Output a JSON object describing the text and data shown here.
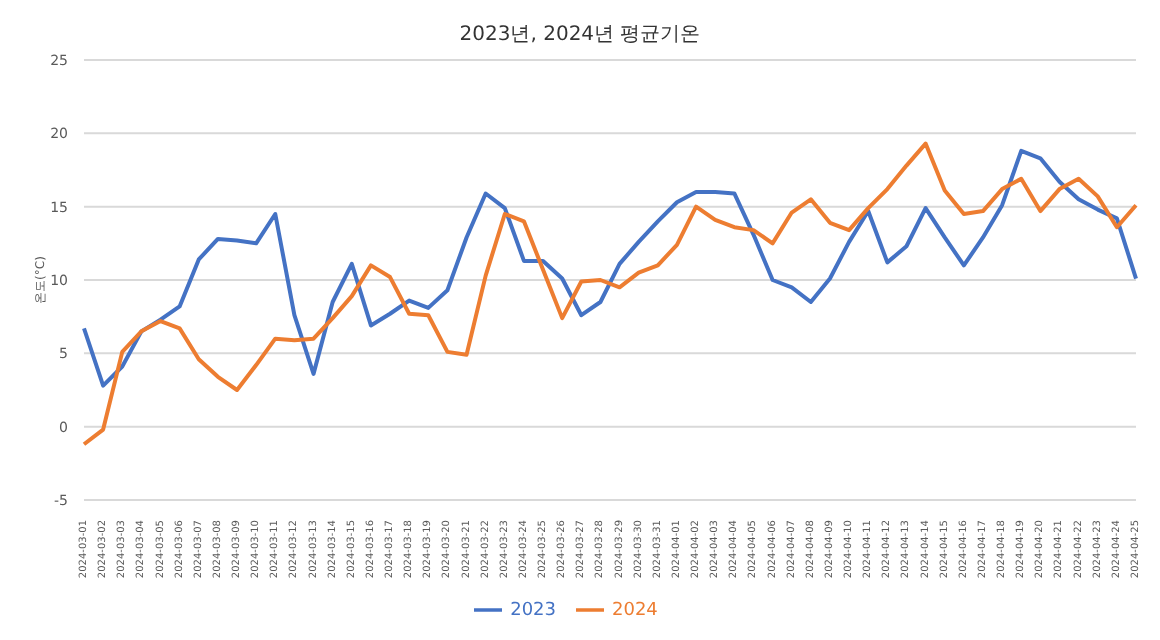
{
  "chart_data": {
    "type": "line",
    "title": "2023년, 2024년 평균기온",
    "ylabel": "온도(°C)",
    "categories": [
      "2024-03-01",
      "2024-03-02",
      "2024-03-03",
      "2024-03-04",
      "2024-03-05",
      "2024-03-06",
      "2024-03-07",
      "2024-03-08",
      "2024-03-09",
      "2024-03-10",
      "2024-03-11",
      "2024-03-12",
      "2024-03-13",
      "2024-03-14",
      "2024-03-15",
      "2024-03-16",
      "2024-03-17",
      "2024-03-18",
      "2024-03-19",
      "2024-03-20",
      "2024-03-21",
      "2024-03-22",
      "2024-03-23",
      "2024-03-24",
      "2024-03-25",
      "2024-03-26",
      "2024-03-27",
      "2024-03-28",
      "2024-03-29",
      "2024-03-30",
      "2024-03-31",
      "2024-04-01",
      "2024-04-02",
      "2024-04-03",
      "2024-04-04",
      "2024-04-05",
      "2024-04-06",
      "2024-04-07",
      "2024-04-08",
      "2024-04-09",
      "2024-04-10",
      "2024-04-11",
      "2024-04-12",
      "2024-04-13",
      "2024-04-14",
      "2024-04-15",
      "2024-04-16",
      "2024-04-17",
      "2024-04-18",
      "2024-04-19",
      "2024-04-20",
      "2024-04-21",
      "2024-04-22",
      "2024-04-23",
      "2024-04-24",
      "2024-04-25"
    ],
    "series": [
      {
        "name": "2023",
        "color": "#4472c4",
        "values": [
          6.7,
          2.8,
          4.1,
          6.5,
          7.3,
          8.2,
          11.4,
          12.8,
          12.7,
          12.5,
          14.5,
          7.6,
          3.6,
          8.5,
          11.1,
          6.9,
          7.7,
          8.6,
          8.1,
          9.3,
          12.9,
          15.9,
          14.9,
          11.3,
          11.3,
          10.1,
          7.6,
          8.5,
          11.1,
          12.6,
          14.0,
          15.3,
          16.0,
          16.0,
          15.9,
          13.1,
          10.0,
          9.5,
          8.5,
          10.1,
          12.6,
          14.7,
          11.2,
          12.3,
          14.9,
          12.9,
          11.0,
          12.9,
          15.1,
          18.8,
          18.3,
          16.7,
          15.5,
          14.8,
          14.2,
          10.1
        ]
      },
      {
        "name": "2024",
        "color": "#ed7d31",
        "values": [
          -1.2,
          -0.2,
          5.1,
          6.5,
          7.2,
          6.7,
          4.6,
          3.4,
          2.5,
          4.2,
          6.0,
          5.9,
          6.0,
          7.4,
          8.9,
          11.0,
          10.2,
          7.7,
          7.6,
          5.1,
          4.9,
          10.3,
          14.5,
          14.0,
          10.7,
          7.4,
          9.9,
          10.0,
          9.5,
          10.5,
          11.0,
          12.4,
          15.0,
          14.1,
          13.6,
          13.4,
          12.5,
          14.6,
          15.5,
          13.9,
          13.4,
          14.9,
          16.2,
          17.8,
          19.3,
          16.1,
          14.5,
          14.7,
          16.2,
          16.9,
          14.7,
          16.2,
          16.9,
          15.7,
          13.6,
          15.1
        ]
      }
    ],
    "ylim": [
      -5,
      25
    ],
    "yticks": [
      -5,
      0,
      5,
      10,
      15,
      20,
      25
    ],
    "grid": "y",
    "legend": "bottom",
    "marker": "none",
    "line_style": "solid"
  }
}
